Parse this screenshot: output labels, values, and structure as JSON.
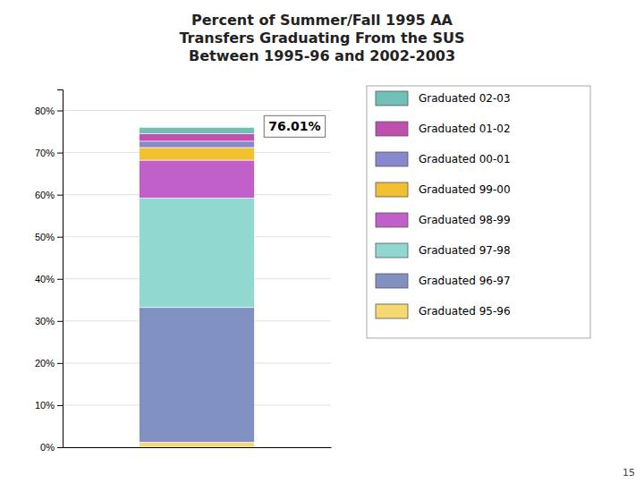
{
  "chart_data": {
    "type": "bar",
    "title": "Percent of Summer/Fall 1995 AA\nTransfers Graduating From the SUS\nBetween 1995-96 and 2002-2003",
    "categories": [
      null
    ],
    "stacked": true,
    "series": [
      {
        "name": "Graduated 95-96",
        "color": "#F5D870",
        "values": [
          0.012
        ]
      },
      {
        "name": "Graduated 96-97",
        "color": "#8090c0",
        "values": [
          0.32
        ]
      },
      {
        "name": "Graduated 97-98",
        "color": "#90d8d0",
        "values": [
          0.26
        ]
      },
      {
        "name": "Graduated 98-99",
        "color": "#c060c8",
        "values": [
          0.09
        ]
      },
      {
        "name": "Graduated 99-00",
        "color": "#F0C030",
        "values": [
          0.03
        ]
      },
      {
        "name": "Graduated 00-01",
        "color": "#8888cc",
        "values": [
          0.015
        ]
      },
      {
        "name": "Graduated 01-02",
        "color": "#c050b0",
        "values": [
          0.018
        ]
      },
      {
        "name": "Graduated 02-03",
        "color": "#70c0b8",
        "values": [
          0.015
        ]
      }
    ],
    "ylim": [
      0,
      0.85
    ],
    "yticks": [
      {
        "value": 0.0,
        "label": "0%"
      },
      {
        "value": 0.1,
        "label": "10%"
      },
      {
        "value": 0.2,
        "label": "20%"
      },
      {
        "value": 0.3,
        "label": "30%"
      },
      {
        "value": 0.4,
        "label": "40%"
      },
      {
        "value": 0.5,
        "label": "50%"
      },
      {
        "value": 0.6,
        "label": "60%"
      },
      {
        "value": 0.7,
        "label": "70%"
      },
      {
        "value": 0.8,
        "label": "80%"
      }
    ],
    "grid": true,
    "legend": "right",
    "annotations": [
      "76.01%",
      "15"
    ]
  }
}
